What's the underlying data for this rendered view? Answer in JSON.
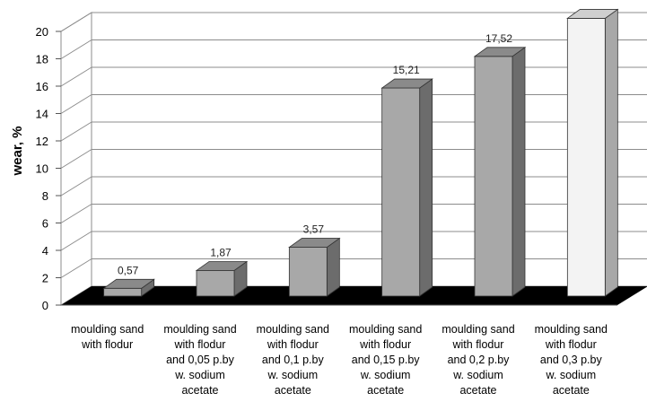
{
  "chart_data": {
    "type": "bar",
    "ylabel": "wear, %",
    "ylim": [
      0,
      20
    ],
    "yticks": [
      "0",
      "2",
      "4",
      "6",
      "8",
      "10",
      "12",
      "14",
      "16",
      "18",
      "20"
    ],
    "grid": true,
    "categories": [
      [
        "moulding sand",
        "with flodur"
      ],
      [
        "moulding sand",
        "with flodur",
        "and 0,05 p.by",
        "w. sodium",
        "acetate"
      ],
      [
        "moulding sand",
        "with flodur",
        "and 0,1 p.by",
        "w. sodium",
        "acetate"
      ],
      [
        "moulding sand",
        "with flodur",
        "and 0,15 p.by",
        "w. sodium",
        "acetate"
      ],
      [
        "moulding sand",
        "with flodur",
        "and 0,2 p.by",
        "w. sodium",
        "acetate"
      ],
      [
        "moulding sand",
        "with flodur",
        "and 0,3 p.by",
        "w. sodium",
        "acetate"
      ]
    ],
    "values": [
      0.57,
      1.87,
      3.57,
      15.21,
      17.52,
      20.3
    ],
    "data_labels": [
      "0,57",
      "1,87",
      "3,57",
      "15,21",
      "17,52",
      ""
    ],
    "colors": {
      "front": "#a8a8a8",
      "side": "#6c6c6c",
      "top": "#8a8a8a",
      "last_front": "#f3f3f3",
      "last_side": "#a8a8a8",
      "last_top": "#cfcfcf",
      "floor": "#000000",
      "grid": "#8c8c8c"
    }
  }
}
